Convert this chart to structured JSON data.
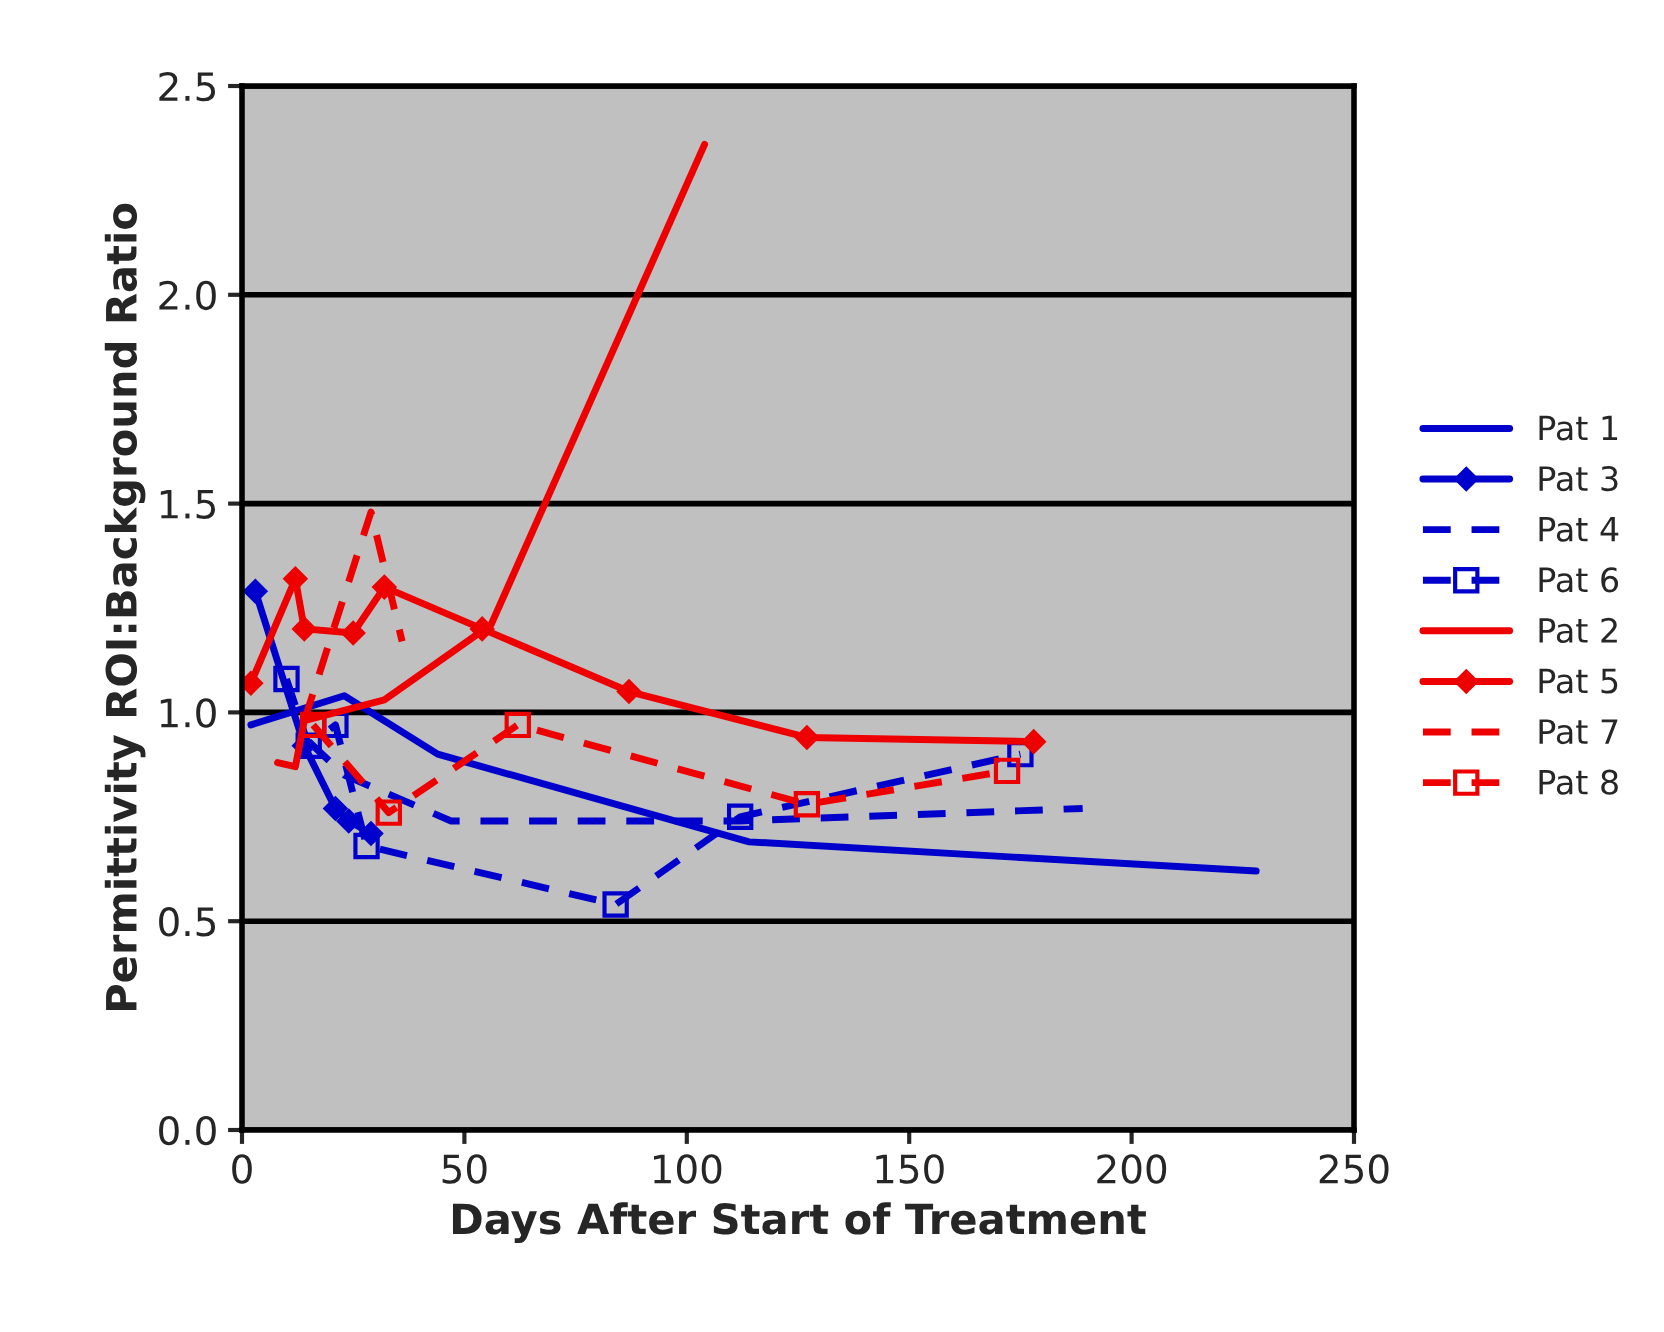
{
  "chart_data": {
    "type": "line",
    "xlabel": "Days After Start of Treatment",
    "ylabel": "Permittivity ROI:Background Ratio",
    "xlim": [
      0,
      250
    ],
    "xticks": [
      0,
      50,
      100,
      150,
      200,
      250
    ],
    "ylim": [
      0,
      2.5
    ],
    "yticks": [
      {
        "value": 0,
        "label": "0.0"
      },
      {
        "value": 0.5,
        "label": "0.5"
      },
      {
        "value": 1.0,
        "label": "1.0"
      },
      {
        "value": 1.5,
        "label": "1.5"
      },
      {
        "value": 2.0,
        "label": "2.0"
      },
      {
        "value": 2.5,
        "label": "2.5"
      }
    ],
    "grid": "y",
    "legend": "right",
    "series": [
      {
        "name": "Pat 1",
        "color": "#0000cc",
        "line_style": "solid",
        "marker": "none",
        "x": [
          2,
          23,
          44,
          114,
          228
        ],
        "values": [
          0.97,
          1.04,
          0.9,
          0.69,
          0.62
        ]
      },
      {
        "name": "Pat 3",
        "color": "#0000cc",
        "line_style": "solid",
        "marker": "diamond",
        "x": [
          3,
          14,
          21,
          24,
          29
        ],
        "values": [
          1.29,
          0.92,
          0.77,
          0.74,
          0.71
        ]
      },
      {
        "name": "Pat 4",
        "color": "#0000cc",
        "line_style": "dashed",
        "marker": "none",
        "x": [
          15,
          23,
          47,
          112,
          189
        ],
        "values": [
          0.93,
          0.85,
          0.74,
          0.74,
          0.77
        ]
      },
      {
        "name": "Pat 6",
        "color": "#0000cc",
        "line_style": "dashed",
        "marker": "square",
        "x": [
          10,
          15,
          21,
          28,
          84,
          112,
          175
        ],
        "values": [
          1.08,
          0.92,
          0.97,
          0.68,
          0.54,
          0.75,
          0.9
        ]
      },
      {
        "name": "Pat 2",
        "color": "#ee0000",
        "line_style": "solid",
        "marker": "none",
        "x": [
          8,
          12,
          14,
          32,
          56,
          104
        ],
        "values": [
          0.88,
          0.87,
          0.98,
          1.03,
          1.21,
          2.36
        ]
      },
      {
        "name": "Pat 5",
        "color": "#ee0000",
        "line_style": "solid",
        "marker": "diamond",
        "x": [
          2,
          12,
          14,
          25,
          32,
          54,
          87,
          127,
          178
        ],
        "values": [
          1.07,
          1.32,
          1.2,
          1.19,
          1.3,
          1.2,
          1.05,
          0.94,
          0.93
        ]
      },
      {
        "name": "Pat 7",
        "color": "#ee0000",
        "line_style": "dashed",
        "marker": "none",
        "x": [
          14,
          29,
          36
        ],
        "values": [
          0.98,
          1.48,
          1.17
        ]
      },
      {
        "name": "Pat 8",
        "color": "#ee0000",
        "line_style": "dashed",
        "marker": "square",
        "x": [
          16,
          33,
          62,
          127,
          172
        ],
        "values": [
          0.97,
          0.76,
          0.97,
          0.78,
          0.86
        ]
      }
    ]
  }
}
